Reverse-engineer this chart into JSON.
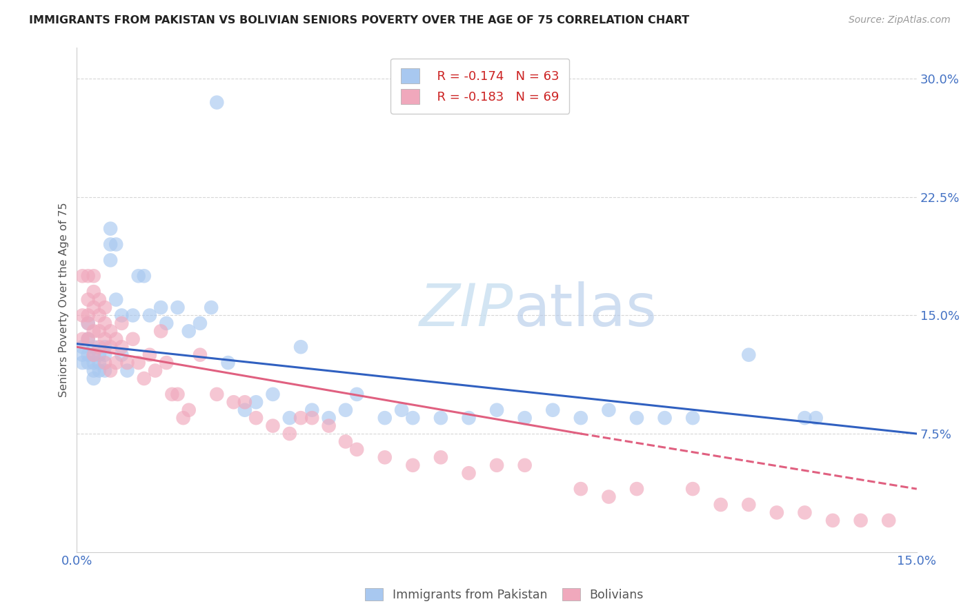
{
  "title": "IMMIGRANTS FROM PAKISTAN VS BOLIVIAN SENIORS POVERTY OVER THE AGE OF 75 CORRELATION CHART",
  "source": "Source: ZipAtlas.com",
  "ylabel": "Seniors Poverty Over the Age of 75",
  "y_ticks": [
    0.075,
    0.15,
    0.225,
    0.3
  ],
  "y_tick_labels": [
    "7.5%",
    "15.0%",
    "22.5%",
    "30.0%"
  ],
  "xlim": [
    0.0,
    0.15
  ],
  "ylim": [
    0.0,
    0.32
  ],
  "legend_blue_r": "R = -0.174",
  "legend_blue_n": "N = 63",
  "legend_pink_r": "R = -0.183",
  "legend_pink_n": "N = 69",
  "color_blue": "#a8c8f0",
  "color_pink": "#f0a8bc",
  "color_trendline_blue": "#3060c0",
  "color_trendline_pink": "#e06080",
  "color_axis_labels": "#4472c4",
  "background": "#ffffff",
  "grid_color": "#cccccc",
  "watermark_color": "#c8dff0",
  "pakistan_x": [
    0.001,
    0.001,
    0.001,
    0.002,
    0.002,
    0.002,
    0.002,
    0.003,
    0.003,
    0.003,
    0.003,
    0.003,
    0.004,
    0.004,
    0.004,
    0.005,
    0.005,
    0.005,
    0.006,
    0.006,
    0.006,
    0.007,
    0.007,
    0.008,
    0.008,
    0.009,
    0.01,
    0.011,
    0.012,
    0.013,
    0.015,
    0.016,
    0.018,
    0.02,
    0.022,
    0.024,
    0.025,
    0.027,
    0.03,
    0.032,
    0.035,
    0.038,
    0.04,
    0.042,
    0.045,
    0.048,
    0.05,
    0.055,
    0.058,
    0.06,
    0.065,
    0.07,
    0.075,
    0.08,
    0.085,
    0.09,
    0.095,
    0.1,
    0.105,
    0.11,
    0.12,
    0.13,
    0.132
  ],
  "pakistan_y": [
    0.13,
    0.125,
    0.12,
    0.145,
    0.135,
    0.125,
    0.12,
    0.13,
    0.125,
    0.12,
    0.115,
    0.11,
    0.125,
    0.12,
    0.115,
    0.13,
    0.125,
    0.115,
    0.205,
    0.195,
    0.185,
    0.195,
    0.16,
    0.15,
    0.125,
    0.115,
    0.15,
    0.175,
    0.175,
    0.15,
    0.155,
    0.145,
    0.155,
    0.14,
    0.145,
    0.155,
    0.285,
    0.12,
    0.09,
    0.095,
    0.1,
    0.085,
    0.13,
    0.09,
    0.085,
    0.09,
    0.1,
    0.085,
    0.09,
    0.085,
    0.085,
    0.085,
    0.09,
    0.085,
    0.09,
    0.085,
    0.09,
    0.085,
    0.085,
    0.085,
    0.125,
    0.085,
    0.085
  ],
  "bolivia_x": [
    0.001,
    0.001,
    0.001,
    0.002,
    0.002,
    0.002,
    0.002,
    0.002,
    0.003,
    0.003,
    0.003,
    0.003,
    0.003,
    0.004,
    0.004,
    0.004,
    0.004,
    0.005,
    0.005,
    0.005,
    0.005,
    0.006,
    0.006,
    0.006,
    0.007,
    0.007,
    0.008,
    0.008,
    0.009,
    0.01,
    0.011,
    0.012,
    0.013,
    0.014,
    0.015,
    0.016,
    0.017,
    0.018,
    0.019,
    0.02,
    0.022,
    0.025,
    0.028,
    0.03,
    0.032,
    0.035,
    0.038,
    0.04,
    0.042,
    0.045,
    0.048,
    0.05,
    0.055,
    0.06,
    0.065,
    0.07,
    0.075,
    0.08,
    0.09,
    0.095,
    0.1,
    0.11,
    0.115,
    0.12,
    0.125,
    0.13,
    0.135,
    0.14,
    0.145
  ],
  "bolivia_y": [
    0.175,
    0.15,
    0.135,
    0.175,
    0.16,
    0.15,
    0.145,
    0.135,
    0.175,
    0.165,
    0.155,
    0.14,
    0.125,
    0.16,
    0.15,
    0.14,
    0.13,
    0.155,
    0.145,
    0.135,
    0.12,
    0.14,
    0.13,
    0.115,
    0.135,
    0.12,
    0.145,
    0.13,
    0.12,
    0.135,
    0.12,
    0.11,
    0.125,
    0.115,
    0.14,
    0.12,
    0.1,
    0.1,
    0.085,
    0.09,
    0.125,
    0.1,
    0.095,
    0.095,
    0.085,
    0.08,
    0.075,
    0.085,
    0.085,
    0.08,
    0.07,
    0.065,
    0.06,
    0.055,
    0.06,
    0.05,
    0.055,
    0.055,
    0.04,
    0.035,
    0.04,
    0.04,
    0.03,
    0.03,
    0.025,
    0.025,
    0.02,
    0.02,
    0.02
  ],
  "trendline_blue_x0": 0.0,
  "trendline_blue_y0": 0.132,
  "trendline_blue_x1": 0.15,
  "trendline_blue_y1": 0.075,
  "trendline_pink_solid_x0": 0.0,
  "trendline_pink_solid_y0": 0.13,
  "trendline_pink_solid_x1": 0.09,
  "trendline_pink_solid_y1": 0.075,
  "trendline_pink_dash_x0": 0.09,
  "trendline_pink_dash_y0": 0.075,
  "trendline_pink_dash_x1": 0.15,
  "trendline_pink_dash_y1": 0.04
}
